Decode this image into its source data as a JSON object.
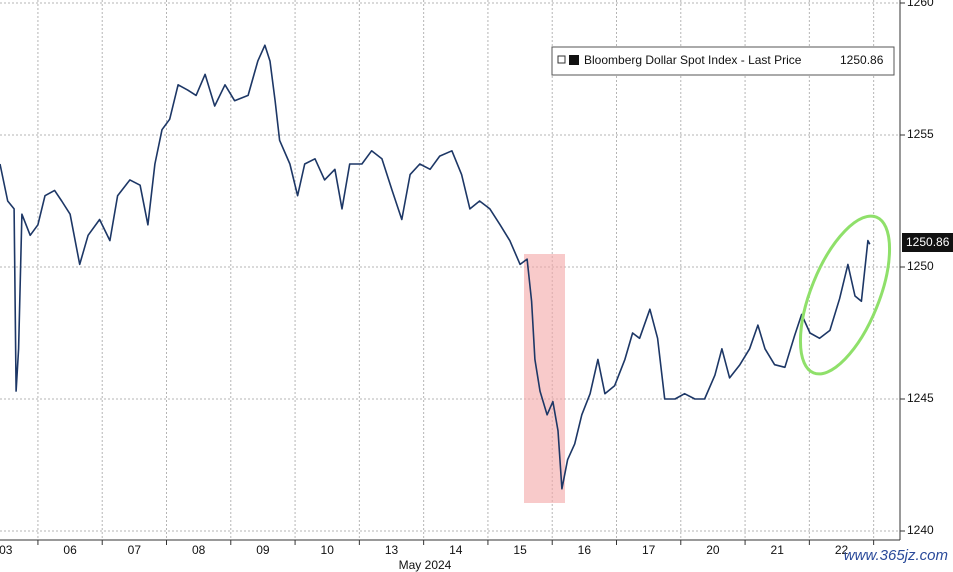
{
  "chart_data": {
    "type": "line",
    "xlabel": "May 2024",
    "x": [
      0.41,
      0.53,
      0.63,
      0.66,
      0.7,
      0.75,
      0.88,
      1.0,
      1.11,
      1.26,
      1.37,
      1.5,
      1.65,
      1.78,
      1.96,
      2.12,
      2.24,
      2.43,
      2.59,
      2.71,
      2.82,
      2.93,
      3.05,
      3.18,
      3.33,
      3.46,
      3.6,
      3.75,
      3.91,
      4.06,
      4.27,
      4.42,
      4.53,
      4.61,
      4.69,
      4.76,
      4.92,
      5.04,
      5.15,
      5.31,
      5.46,
      5.62,
      5.73,
      5.85,
      6.04,
      6.19,
      6.35,
      6.51,
      6.66,
      6.79,
      6.94,
      7.1,
      7.25,
      7.44,
      7.59,
      7.72,
      7.87,
      8.03,
      8.19,
      8.34,
      8.5,
      8.61,
      8.68,
      8.73,
      8.81,
      8.92,
      9.01,
      9.09,
      9.15,
      9.24,
      9.35,
      9.46,
      9.59,
      9.71,
      9.82,
      9.97,
      10.13,
      10.25,
      10.36,
      10.52,
      10.64,
      10.75,
      10.91,
      11.06,
      11.22,
      11.37,
      11.53,
      11.64,
      11.76,
      11.92,
      12.07,
      12.2,
      12.31,
      12.46,
      12.62,
      12.77,
      12.88,
      13.01,
      13.16,
      13.32,
      13.47,
      13.6,
      13.71,
      13.81,
      13.91,
      13.94
    ],
    "series": [
      {
        "name": "Bloomberg Dollar Spot Index - Last Price",
        "color": "#1d3766",
        "values": [
          1253.9,
          1252.5,
          1252.2,
          1245.3,
          1246.9,
          1252.0,
          1251.2,
          1251.6,
          1252.7,
          1252.9,
          1252.5,
          1252.0,
          1250.1,
          1251.2,
          1251.8,
          1251.0,
          1252.7,
          1253.3,
          1253.1,
          1251.6,
          1253.9,
          1255.2,
          1255.6,
          1256.9,
          1256.7,
          1256.5,
          1257.3,
          1256.1,
          1256.9,
          1256.3,
          1256.5,
          1257.8,
          1258.4,
          1257.8,
          1256.3,
          1254.8,
          1253.9,
          1252.7,
          1253.9,
          1254.1,
          1253.3,
          1253.7,
          1252.2,
          1253.9,
          1253.9,
          1254.4,
          1254.1,
          1252.9,
          1251.8,
          1253.5,
          1253.9,
          1253.7,
          1254.2,
          1254.4,
          1253.5,
          1252.2,
          1252.5,
          1252.2,
          1251.6,
          1251.0,
          1250.1,
          1250.3,
          1248.7,
          1246.5,
          1245.3,
          1244.4,
          1244.9,
          1243.8,
          1241.6,
          1242.7,
          1243.3,
          1244.4,
          1245.2,
          1246.5,
          1245.2,
          1245.5,
          1246.5,
          1247.5,
          1247.3,
          1248.4,
          1247.3,
          1245.0,
          1245.0,
          1245.2,
          1245.0,
          1245.0,
          1245.9,
          1246.9,
          1245.8,
          1246.3,
          1246.9,
          1247.8,
          1246.9,
          1246.3,
          1246.2,
          1247.4,
          1248.2,
          1247.5,
          1247.3,
          1247.6,
          1248.8,
          1250.1,
          1248.9,
          1248.7,
          1251.0,
          1250.86
        ]
      }
    ],
    "xlim": [
      0.41,
      14.41
    ],
    "ylim": [
      1240,
      1260
    ],
    "xticks": [
      {
        "value": 0.5,
        "label": "03"
      },
      {
        "value": 1.5,
        "label": "06"
      },
      {
        "value": 2.5,
        "label": "07"
      },
      {
        "value": 3.5,
        "label": "08"
      },
      {
        "value": 4.5,
        "label": "09"
      },
      {
        "value": 5.5,
        "label": "10"
      },
      {
        "value": 6.5,
        "label": "13"
      },
      {
        "value": 7.5,
        "label": "14"
      },
      {
        "value": 8.5,
        "label": "15"
      },
      {
        "value": 9.5,
        "label": "16"
      },
      {
        "value": 10.5,
        "label": "17"
      },
      {
        "value": 11.5,
        "label": "20"
      },
      {
        "value": 12.5,
        "label": "21"
      },
      {
        "value": 13.5,
        "label": "22"
      }
    ],
    "yticks": [
      1240,
      1245,
      1250,
      1255,
      1260
    ],
    "grid": true,
    "legend": "top-right",
    "watermark": "www.365jz.com"
  }
}
